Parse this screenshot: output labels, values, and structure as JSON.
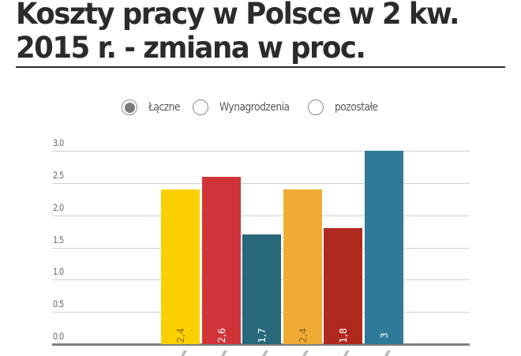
{
  "header": {
    "title": "Koszty pracy w Polsce w 2 kw. 2015 r. - zmiana w proc."
  },
  "legend": {
    "options": [
      {
        "label": "Łączne",
        "selected": true
      },
      {
        "label": "Wynagrodzenia",
        "selected": false
      },
      {
        "label": "pozostałe",
        "selected": false
      }
    ]
  },
  "chart_data": {
    "type": "bar",
    "title": "Koszty pracy w Polsce w 2 kw. 2015 r. - zmiana w proc.",
    "xlabel": "",
    "ylabel": "",
    "ylim": [
      0,
      3.0
    ],
    "yticks": [
      "0.0",
      "0.5",
      "1.0",
      "1.5",
      "2.0",
      "2.5",
      "3.0"
    ],
    "grid": true,
    "legend_position": "top",
    "categories": [
      "",
      "",
      "",
      "",
      "",
      ""
    ],
    "values": [
      2.4,
      2.6,
      1.7,
      2.4,
      1.8,
      3
    ],
    "value_labels": [
      "2,4",
      "2,6",
      "1,7",
      "2,4",
      "1,8",
      "3"
    ],
    "colors": [
      "#fbd000",
      "#d13438",
      "#27687a",
      "#f0ab35",
      "#b0291f",
      "#2f7a99"
    ],
    "label_colors": [
      "#8a6d00",
      "#ffffff",
      "#ffffff",
      "#8a6520",
      "#ffffff",
      "#ffffff"
    ]
  }
}
